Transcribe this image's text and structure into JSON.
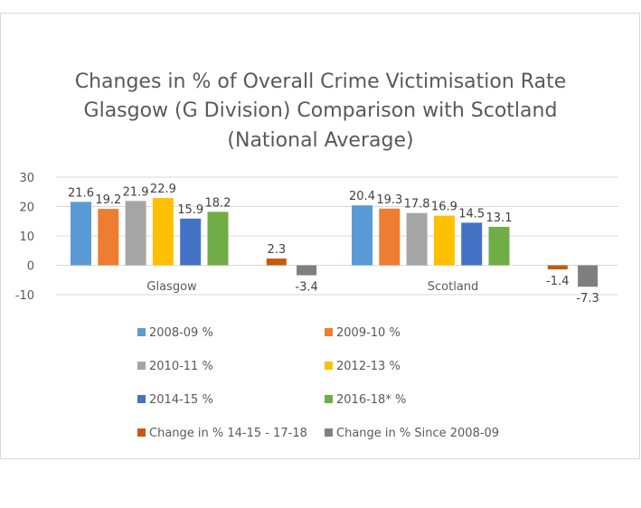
{
  "chart_data": {
    "type": "bar",
    "title_lines": [
      "Changes in % of Overall Crime Victimisation Rate",
      "Glasgow (G Division) Comparison with Scotland",
      "(National Average)"
    ],
    "categories": [
      "Glasgow",
      "Scotland"
    ],
    "series": [
      {
        "name": "2008-09 %",
        "color": "#5b9bd5",
        "values": [
          21.6,
          20.4
        ]
      },
      {
        "name": "2009-10 %",
        "color": "#ed7d31",
        "values": [
          19.2,
          19.3
        ]
      },
      {
        "name": "2010-11 %",
        "color": "#a5a5a5",
        "values": [
          21.9,
          17.8
        ]
      },
      {
        "name": "2012-13 %",
        "color": "#ffc000",
        "values": [
          22.9,
          16.9
        ]
      },
      {
        "name": "2014-15 %",
        "color": "#4472c4",
        "values": [
          15.9,
          14.5
        ]
      },
      {
        "name": "2016-18* %",
        "color": "#70ad47",
        "values": [
          18.2,
          13.1
        ]
      },
      {
        "name": "Change in %  14-15 - 17-18",
        "color": "#c55a11",
        "values": [
          2.3,
          -1.4
        ]
      },
      {
        "name": "Change in %  Since 2008-09",
        "color": "#7f7f7f",
        "values": [
          -3.4,
          -7.3
        ]
      }
    ],
    "yticks": [
      30,
      20,
      10,
      0,
      -10
    ],
    "ylim": [
      -10,
      30
    ],
    "grid": true,
    "legend_position": "bottom"
  }
}
